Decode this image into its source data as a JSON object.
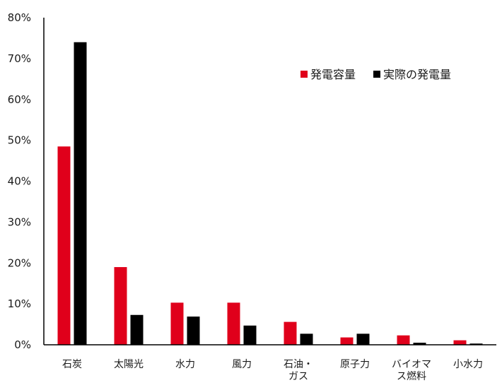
{
  "chart_data": {
    "type": "bar",
    "categories": [
      [
        "石炭"
      ],
      [
        "太陽光"
      ],
      [
        "水力"
      ],
      [
        "風力"
      ],
      [
        "石油・",
        "ガス"
      ],
      [
        "原子力"
      ],
      [
        "バイオマ",
        "ス燃料"
      ],
      [
        "小水力"
      ]
    ],
    "series": [
      {
        "name": "発電容量",
        "color": "#e0001b",
        "values": [
          48.5,
          19.0,
          10.3,
          10.3,
          5.6,
          1.8,
          2.3,
          1.1
        ]
      },
      {
        "name": "実際の発電量",
        "color": "#000000",
        "values": [
          74.0,
          7.3,
          6.9,
          4.7,
          2.7,
          2.7,
          0.5,
          0.3
        ]
      }
    ],
    "y_ticks": [
      "0%",
      "10%",
      "20%",
      "30%",
      "40%",
      "50%",
      "60%",
      "70%",
      "80%"
    ],
    "ylim": [
      0,
      80
    ],
    "legend_position": "top-right",
    "grid": false
  }
}
